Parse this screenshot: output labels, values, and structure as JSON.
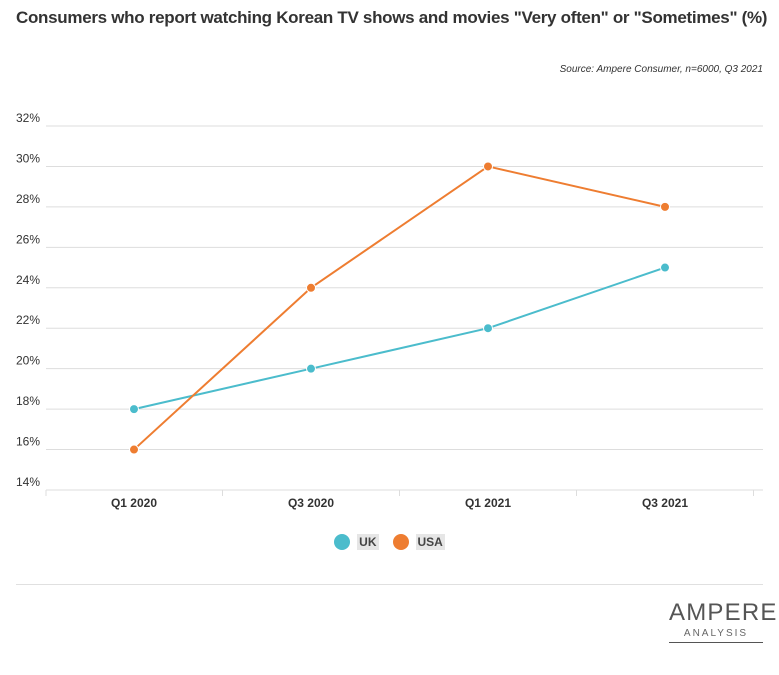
{
  "title": "Consumers who report watching Korean TV shows and movies \"Very often\" or \"Sometimes\" (%)",
  "source": "Source: Ampere Consumer, n=6000, Q3 2021",
  "logo": {
    "main": "AMPERE",
    "sub": "ANALYSIS"
  },
  "chart_data": {
    "type": "line",
    "categories": [
      "Q1 2020",
      "Q3 2020",
      "Q1 2021",
      "Q3 2021"
    ],
    "series": [
      {
        "name": "UK",
        "color": "#4bbccc",
        "values": [
          18,
          20,
          22,
          25
        ]
      },
      {
        "name": "USA",
        "color": "#ee7d31",
        "values": [
          16,
          24,
          30,
          28
        ]
      }
    ],
    "yticks": [
      "32%",
      "30%",
      "28%",
      "26%",
      "24%",
      "22%",
      "20%",
      "18%",
      "16%",
      "14%"
    ],
    "ylim": [
      14,
      32
    ],
    "grid": true,
    "legend": "bottom-center"
  }
}
